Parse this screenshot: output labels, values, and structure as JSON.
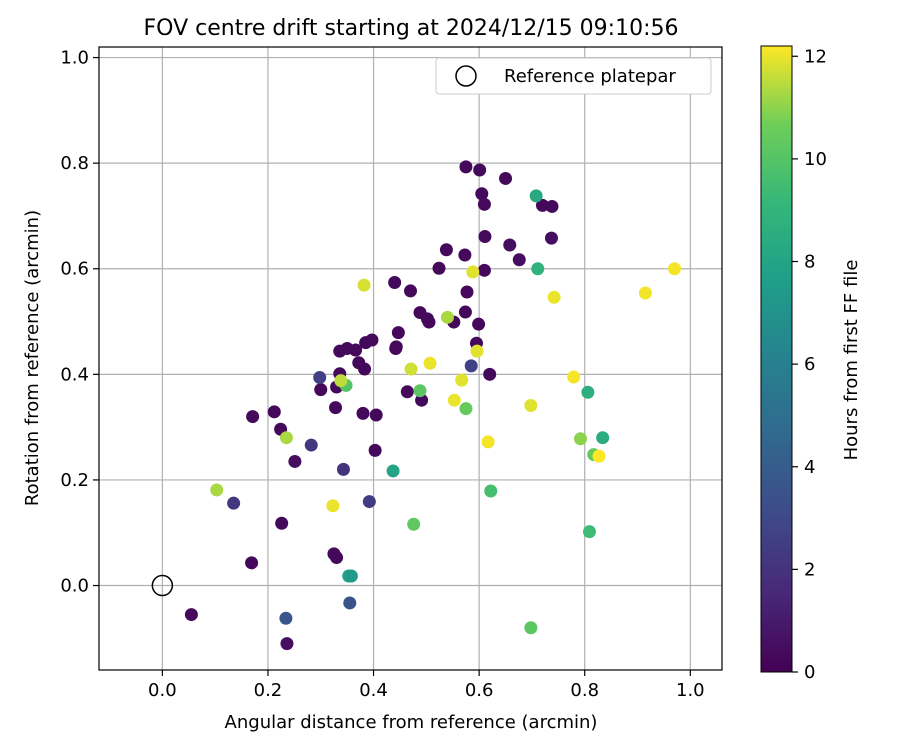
{
  "chart_data": {
    "type": "scatter",
    "title": "FOV centre drift starting at 2024/12/15 09:10:56",
    "xlabel": "Angular distance from reference (arcmin)",
    "ylabel": "Rotation from reference (arcmin)",
    "xlim": [
      -0.12,
      1.06
    ],
    "ylim": [
      -0.16,
      1.02
    ],
    "xticks": [
      0.0,
      0.2,
      0.4,
      0.6,
      0.8,
      1.0
    ],
    "yticks": [
      0.0,
      0.2,
      0.4,
      0.6,
      0.8,
      1.0
    ],
    "grid": true,
    "legend": {
      "position": "top-right",
      "entries": [
        "Reference platepar"
      ]
    },
    "reference_point": {
      "x": 0.0,
      "y": 0.0,
      "label": "Reference platepar"
    },
    "colorbar": {
      "label": "Hours from first FF file",
      "range": [
        0,
        12.2
      ],
      "ticks": [
        0,
        2,
        4,
        6,
        8,
        10,
        12
      ],
      "colormap": "viridis"
    },
    "points": [
      {
        "x": 0.575,
        "y": 0.793,
        "h": 0.3
      },
      {
        "x": 0.601,
        "y": 0.787,
        "h": 0.3
      },
      {
        "x": 0.65,
        "y": 0.771,
        "h": 0.3
      },
      {
        "x": 0.605,
        "y": 0.742,
        "h": 0.3
      },
      {
        "x": 0.61,
        "y": 0.722,
        "h": 0.3
      },
      {
        "x": 0.72,
        "y": 0.72,
        "h": 0.3
      },
      {
        "x": 0.738,
        "y": 0.718,
        "h": 0.3
      },
      {
        "x": 0.611,
        "y": 0.661,
        "h": 0.3
      },
      {
        "x": 0.737,
        "y": 0.658,
        "h": 0.5
      },
      {
        "x": 0.658,
        "y": 0.645,
        "h": 0.5
      },
      {
        "x": 0.538,
        "y": 0.636,
        "h": 0.3
      },
      {
        "x": 0.573,
        "y": 0.626,
        "h": 0.3
      },
      {
        "x": 0.676,
        "y": 0.617,
        "h": 0.5
      },
      {
        "x": 0.524,
        "y": 0.601,
        "h": 0.3
      },
      {
        "x": 0.61,
        "y": 0.597,
        "h": 0.3
      },
      {
        "x": 0.44,
        "y": 0.574,
        "h": 0.3
      },
      {
        "x": 0.47,
        "y": 0.558,
        "h": 0.3
      },
      {
        "x": 0.577,
        "y": 0.556,
        "h": 0.3
      },
      {
        "x": 0.488,
        "y": 0.517,
        "h": 0.3
      },
      {
        "x": 0.574,
        "y": 0.518,
        "h": 0.3
      },
      {
        "x": 0.502,
        "y": 0.505,
        "h": 0.3
      },
      {
        "x": 0.505,
        "y": 0.499,
        "h": 0.3
      },
      {
        "x": 0.552,
        "y": 0.499,
        "h": 0.3
      },
      {
        "x": 0.599,
        "y": 0.495,
        "h": 0.3
      },
      {
        "x": 0.447,
        "y": 0.479,
        "h": 0.3
      },
      {
        "x": 0.397,
        "y": 0.465,
        "h": 0.3
      },
      {
        "x": 0.385,
        "y": 0.46,
        "h": 0.3
      },
      {
        "x": 0.595,
        "y": 0.459,
        "h": 0.3
      },
      {
        "x": 0.443,
        "y": 0.452,
        "h": 0.3
      },
      {
        "x": 0.442,
        "y": 0.449,
        "h": 0.3
      },
      {
        "x": 0.35,
        "y": 0.449,
        "h": 0.3
      },
      {
        "x": 0.336,
        "y": 0.444,
        "h": 0.3
      },
      {
        "x": 0.366,
        "y": 0.446,
        "h": 0.3
      },
      {
        "x": 0.372,
        "y": 0.422,
        "h": 0.3
      },
      {
        "x": 0.383,
        "y": 0.41,
        "h": 0.3
      },
      {
        "x": 0.336,
        "y": 0.401,
        "h": 0.3
      },
      {
        "x": 0.62,
        "y": 0.4,
        "h": 0.3
      },
      {
        "x": 0.33,
        "y": 0.376,
        "h": 0.3
      },
      {
        "x": 0.3,
        "y": 0.371,
        "h": 0.3
      },
      {
        "x": 0.464,
        "y": 0.367,
        "h": 0.3
      },
      {
        "x": 0.491,
        "y": 0.351,
        "h": 0.3
      },
      {
        "x": 0.328,
        "y": 0.337,
        "h": 0.3
      },
      {
        "x": 0.38,
        "y": 0.326,
        "h": 0.3
      },
      {
        "x": 0.405,
        "y": 0.323,
        "h": 0.3
      },
      {
        "x": 0.171,
        "y": 0.32,
        "h": 0.3
      },
      {
        "x": 0.212,
        "y": 0.329,
        "h": 0.3
      },
      {
        "x": 0.224,
        "y": 0.296,
        "h": 0.3
      },
      {
        "x": 0.403,
        "y": 0.256,
        "h": 0.3
      },
      {
        "x": 0.251,
        "y": 0.235,
        "h": 0.5
      },
      {
        "x": 0.226,
        "y": 0.118,
        "h": 0.3
      },
      {
        "x": 0.325,
        "y": 0.06,
        "h": 0.3
      },
      {
        "x": 0.33,
        "y": 0.053,
        "h": 0.3
      },
      {
        "x": 0.169,
        "y": 0.043,
        "h": 0.3
      },
      {
        "x": 0.055,
        "y": -0.055,
        "h": 0.3
      },
      {
        "x": 0.236,
        "y": -0.11,
        "h": 0.5
      },
      {
        "x": 0.298,
        "y": 0.394,
        "h": 2.6
      },
      {
        "x": 0.585,
        "y": 0.416,
        "h": 2.7
      },
      {
        "x": 0.282,
        "y": 0.266,
        "h": 2.2
      },
      {
        "x": 0.343,
        "y": 0.22,
        "h": 2.0
      },
      {
        "x": 0.135,
        "y": 0.156,
        "h": 2.2
      },
      {
        "x": 0.392,
        "y": 0.159,
        "h": 2.4
      },
      {
        "x": 0.234,
        "y": -0.062,
        "h": 3.6
      },
      {
        "x": 0.355,
        "y": -0.033,
        "h": 3.4
      },
      {
        "x": 0.708,
        "y": 0.738,
        "h": 8.3
      },
      {
        "x": 0.711,
        "y": 0.6,
        "h": 8.8
      },
      {
        "x": 0.806,
        "y": 0.366,
        "h": 8.6
      },
      {
        "x": 0.834,
        "y": 0.28,
        "h": 8.4
      },
      {
        "x": 0.437,
        "y": 0.217,
        "h": 8.0
      },
      {
        "x": 0.357,
        "y": 0.018,
        "h": 7.8
      },
      {
        "x": 0.353,
        "y": 0.018,
        "h": 7.8
      },
      {
        "x": 0.358,
        "y": 0.018,
        "h": 7.4
      },
      {
        "x": 0.622,
        "y": 0.179,
        "h": 9.6
      },
      {
        "x": 0.809,
        "y": 0.102,
        "h": 9.4
      },
      {
        "x": 0.348,
        "y": 0.379,
        "h": 10.0
      },
      {
        "x": 0.488,
        "y": 0.369,
        "h": 10.2
      },
      {
        "x": 0.575,
        "y": 0.335,
        "h": 10.4
      },
      {
        "x": 0.476,
        "y": 0.116,
        "h": 10.3
      },
      {
        "x": 0.698,
        "y": -0.08,
        "h": 10.2
      },
      {
        "x": 0.817,
        "y": 0.248,
        "h": 10.4
      },
      {
        "x": 0.792,
        "y": 0.278,
        "h": 11.0
      },
      {
        "x": 0.235,
        "y": 0.28,
        "h": 11.3
      },
      {
        "x": 0.103,
        "y": 0.181,
        "h": 11.3
      },
      {
        "x": 0.54,
        "y": 0.508,
        "h": 11.3
      },
      {
        "x": 0.338,
        "y": 0.388,
        "h": 11.5
      },
      {
        "x": 0.471,
        "y": 0.41,
        "h": 11.7
      },
      {
        "x": 0.382,
        "y": 0.569,
        "h": 11.8
      },
      {
        "x": 0.588,
        "y": 0.594,
        "h": 11.9
      },
      {
        "x": 0.596,
        "y": 0.444,
        "h": 11.9
      },
      {
        "x": 0.507,
        "y": 0.421,
        "h": 12.0
      },
      {
        "x": 0.567,
        "y": 0.389,
        "h": 11.9
      },
      {
        "x": 0.553,
        "y": 0.351,
        "h": 12.0
      },
      {
        "x": 0.742,
        "y": 0.546,
        "h": 12.0
      },
      {
        "x": 0.698,
        "y": 0.341,
        "h": 11.9
      },
      {
        "x": 0.617,
        "y": 0.272,
        "h": 12.1
      },
      {
        "x": 0.323,
        "y": 0.151,
        "h": 12.0
      },
      {
        "x": 0.779,
        "y": 0.395,
        "h": 12.1
      },
      {
        "x": 0.827,
        "y": 0.245,
        "h": 12.2
      },
      {
        "x": 0.915,
        "y": 0.554,
        "h": 12.1
      },
      {
        "x": 0.97,
        "y": 0.6,
        "h": 12.1
      }
    ]
  }
}
